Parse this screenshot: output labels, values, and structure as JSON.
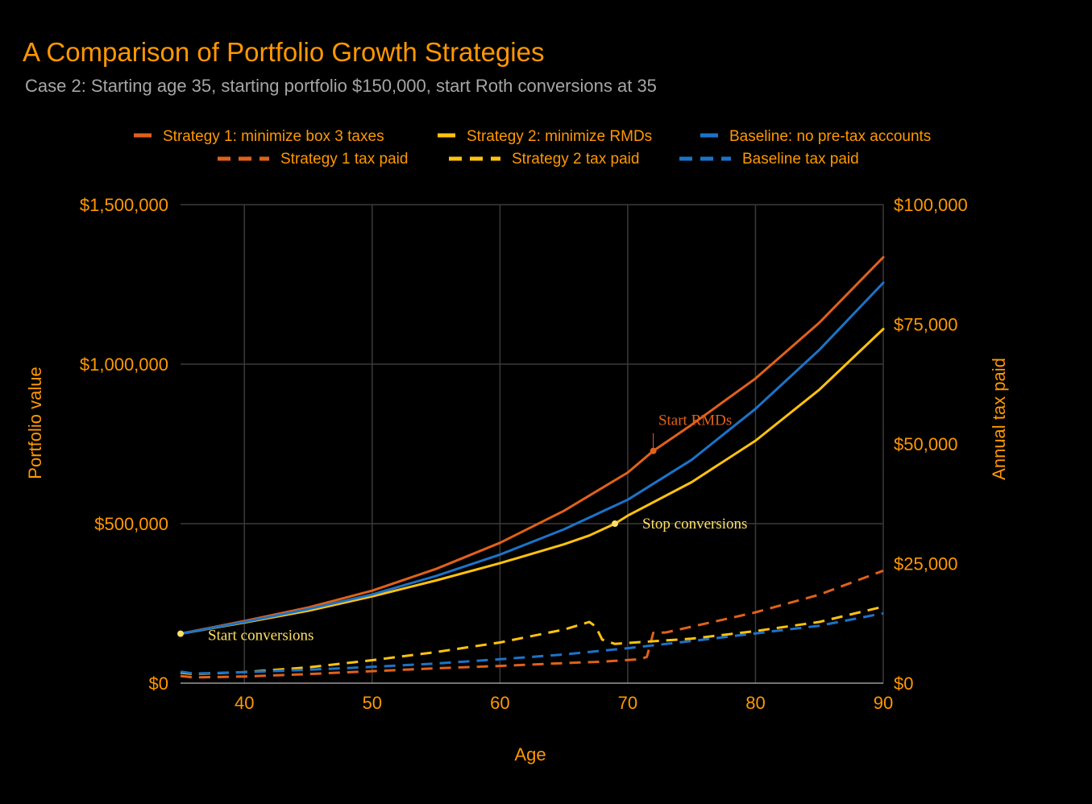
{
  "colors": {
    "background": "#000000",
    "accent": "#ff9800",
    "subtitle": "#a6a6a6",
    "grid": "#3a3a3a",
    "strategy1": "#e0611a",
    "strategy2": "#ffc20e",
    "baseline": "#1c73c8",
    "annotation_conversions": "#ffe066",
    "annotation_rmds": "#e0611a"
  },
  "chart_data": {
    "type": "line",
    "title": "A Comparison of Portfolio Growth Strategies",
    "subtitle": "Case 2: Starting age 35, starting portfolio $150,000, start Roth conversions at 35",
    "xlabel": "Age",
    "ylabel": "Portfolio value",
    "y2label": "Annual tax paid",
    "xlim": [
      35,
      90
    ],
    "ylim": [
      0,
      1500000
    ],
    "y2lim": [
      0,
      100000
    ],
    "x_ticks": [
      "40",
      "50",
      "60",
      "70",
      "80",
      "90"
    ],
    "x_tick_values": [
      40,
      50,
      60,
      70,
      80,
      90
    ],
    "y_ticks": [
      "$0",
      "$500,000",
      "$1,000,000",
      "$1,500,000"
    ],
    "y_tick_values": [
      0,
      500000,
      1000000,
      1500000
    ],
    "y2_ticks": [
      "$0",
      "$25,000",
      "$50,000",
      "$75,000",
      "$100,000"
    ],
    "y2_tick_values": [
      0,
      25000,
      50000,
      75000,
      100000
    ],
    "grid": true,
    "legend_position": "top",
    "series": [
      {
        "name": "Strategy 1: minimize box 3 taxes",
        "axis": "left",
        "style": "solid",
        "color_key": "strategy1",
        "x": [
          35,
          40,
          45,
          50,
          55,
          60,
          65,
          70,
          72,
          75,
          80,
          85,
          90
        ],
        "y": [
          155000,
          195000,
          237000,
          290000,
          358000,
          440000,
          540000,
          660000,
          728000,
          810000,
          955000,
          1130000,
          1335000
        ]
      },
      {
        "name": "Strategy 2: minimize RMDs",
        "axis": "left",
        "style": "solid",
        "color_key": "strategy2",
        "x": [
          35,
          40,
          45,
          50,
          55,
          60,
          65,
          67,
          69,
          70,
          75,
          80,
          85,
          90
        ],
        "y": [
          155000,
          190000,
          227000,
          272000,
          322000,
          376000,
          435000,
          463000,
          500000,
          525000,
          630000,
          760000,
          920000,
          1110000
        ]
      },
      {
        "name": "Baseline: no pre-tax accounts",
        "axis": "left",
        "style": "solid",
        "color_key": "baseline",
        "x": [
          35,
          40,
          45,
          50,
          55,
          60,
          65,
          70,
          75,
          80,
          85,
          90
        ],
        "y": [
          155000,
          192000,
          232000,
          278000,
          336000,
          403000,
          482000,
          575000,
          700000,
          860000,
          1045000,
          1255000
        ]
      },
      {
        "name": "Strategy 1 tax paid",
        "axis": "right",
        "style": "dashed",
        "color_key": "strategy1",
        "x": [
          35,
          36,
          40,
          45,
          50,
          55,
          60,
          65,
          68,
          71,
          71.5,
          72,
          73,
          75,
          80,
          85,
          90
        ],
        "y": [
          1500,
          1200,
          1400,
          1900,
          2500,
          3100,
          3600,
          4200,
          4500,
          5000,
          5500,
          10500,
          10600,
          11800,
          14800,
          18500,
          23500
        ]
      },
      {
        "name": "Strategy 2 tax paid",
        "axis": "right",
        "style": "dashed",
        "color_key": "strategy2",
        "x": [
          35,
          36,
          40,
          45,
          50,
          55,
          60,
          65,
          67,
          67.5,
          68,
          69,
          70,
          75,
          80,
          85,
          90
        ],
        "y": [
          2200,
          1900,
          2300,
          3300,
          4800,
          6500,
          8500,
          11200,
          12800,
          11800,
          9100,
          8200,
          8400,
          9300,
          10900,
          12800,
          16000
        ]
      },
      {
        "name": "Baseline tax paid",
        "axis": "right",
        "style": "dashed",
        "color_key": "baseline",
        "x": [
          35,
          36,
          40,
          45,
          50,
          55,
          60,
          65,
          70,
          75,
          80,
          85,
          90
        ],
        "y": [
          2400,
          2000,
          2300,
          2800,
          3400,
          4100,
          5000,
          6000,
          7300,
          8800,
          10400,
          12000,
          14600
        ]
      }
    ],
    "annotations": [
      {
        "text": "Start conversions",
        "x": 35,
        "y": 155000,
        "axis": "left",
        "color_key": "annotation_conversions"
      },
      {
        "text": "Stop conversions",
        "x": 69,
        "y": 500000,
        "axis": "left",
        "color_key": "annotation_conversions"
      },
      {
        "text": "Start RMDs",
        "x": 72,
        "y": 728000,
        "axis": "left",
        "color_key": "annotation_rmds"
      }
    ]
  }
}
